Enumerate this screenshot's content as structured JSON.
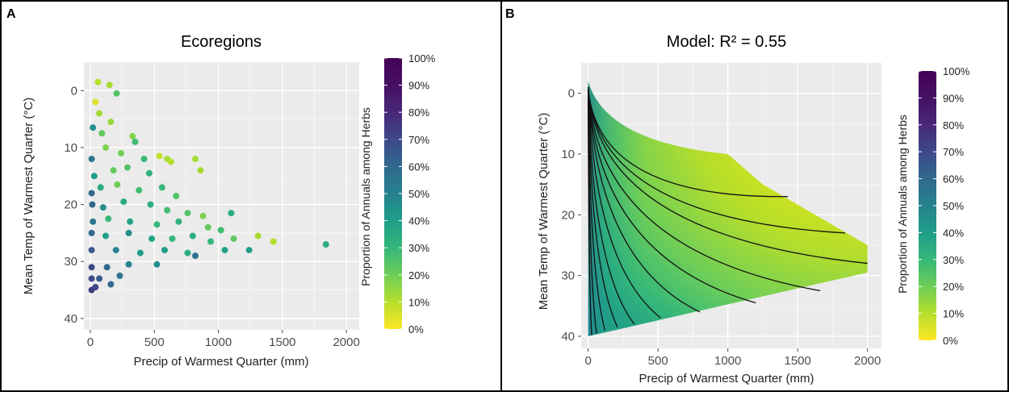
{
  "chart_data": [
    {
      "panel_label": "A",
      "type": "scatter",
      "title": "Ecoregions",
      "xlabel": "Precip of Warmest Quarter (mm)",
      "ylabel": "Mean Temp of Warmest Quarter (°C)",
      "xlim": [
        -50,
        2100
      ],
      "ylim": [
        -5,
        42
      ],
      "y_reversed": true,
      "xticks": [
        "0",
        "500",
        "1000",
        "1500",
        "2000"
      ],
      "yticks": [
        "0",
        "10",
        "20",
        "30",
        "40"
      ],
      "legend_title": "Proportion of Annuals among Herbs",
      "colorbar_ticks": [
        "0%",
        "10%",
        "20%",
        "30%",
        "40%",
        "50%",
        "60%",
        "70%",
        "80%",
        "90%",
        "100%"
      ],
      "colormap": "viridis (reversed: 0% yellow, 100% purple)",
      "grid": true,
      "points": [
        {
          "x": 60,
          "y": -1.5,
          "p": 0.1
        },
        {
          "x": 150,
          "y": -1.0,
          "p": 0.12
        },
        {
          "x": 40,
          "y": 2.0,
          "p": 0.05
        },
        {
          "x": 70,
          "y": 4.0,
          "p": 0.12
        },
        {
          "x": 205,
          "y": 0.5,
          "p": 0.25
        },
        {
          "x": 20,
          "y": 6.5,
          "p": 0.45
        },
        {
          "x": 90,
          "y": 7.5,
          "p": 0.22
        },
        {
          "x": 160,
          "y": 5.5,
          "p": 0.14
        },
        {
          "x": 330,
          "y": 8.0,
          "p": 0.17
        },
        {
          "x": 350,
          "y": 9.0,
          "p": 0.28
        },
        {
          "x": 10,
          "y": 12.0,
          "p": 0.55
        },
        {
          "x": 120,
          "y": 10.0,
          "p": 0.18
        },
        {
          "x": 240,
          "y": 11.0,
          "p": 0.2
        },
        {
          "x": 420,
          "y": 12.0,
          "p": 0.3
        },
        {
          "x": 540,
          "y": 11.5,
          "p": 0.08
        },
        {
          "x": 600,
          "y": 12.0,
          "p": 0.12
        },
        {
          "x": 630,
          "y": 12.5,
          "p": 0.1
        },
        {
          "x": 820,
          "y": 12.0,
          "p": 0.12
        },
        {
          "x": 860,
          "y": 14.0,
          "p": 0.12
        },
        {
          "x": 30,
          "y": 15.0,
          "p": 0.4
        },
        {
          "x": 180,
          "y": 14.0,
          "p": 0.22
        },
        {
          "x": 290,
          "y": 13.5,
          "p": 0.25
        },
        {
          "x": 460,
          "y": 14.5,
          "p": 0.32
        },
        {
          "x": 10,
          "y": 18.0,
          "p": 0.6
        },
        {
          "x": 80,
          "y": 17.0,
          "p": 0.35
        },
        {
          "x": 210,
          "y": 16.5,
          "p": 0.2
        },
        {
          "x": 380,
          "y": 17.5,
          "p": 0.28
        },
        {
          "x": 560,
          "y": 17.0,
          "p": 0.3
        },
        {
          "x": 670,
          "y": 18.5,
          "p": 0.25
        },
        {
          "x": 15,
          "y": 20.0,
          "p": 0.6
        },
        {
          "x": 100,
          "y": 20.5,
          "p": 0.45
        },
        {
          "x": 260,
          "y": 19.5,
          "p": 0.35
        },
        {
          "x": 470,
          "y": 20.0,
          "p": 0.33
        },
        {
          "x": 600,
          "y": 21.0,
          "p": 0.28
        },
        {
          "x": 760,
          "y": 21.5,
          "p": 0.25
        },
        {
          "x": 880,
          "y": 22.0,
          "p": 0.18
        },
        {
          "x": 1100,
          "y": 21.5,
          "p": 0.35
        },
        {
          "x": 20,
          "y": 23.0,
          "p": 0.55
        },
        {
          "x": 140,
          "y": 22.5,
          "p": 0.3
        },
        {
          "x": 310,
          "y": 23.0,
          "p": 0.38
        },
        {
          "x": 520,
          "y": 23.5,
          "p": 0.3
        },
        {
          "x": 690,
          "y": 23.0,
          "p": 0.32
        },
        {
          "x": 920,
          "y": 24.0,
          "p": 0.22
        },
        {
          "x": 1020,
          "y": 24.5,
          "p": 0.28
        },
        {
          "x": 10,
          "y": 25.0,
          "p": 0.6
        },
        {
          "x": 120,
          "y": 25.5,
          "p": 0.4
        },
        {
          "x": 300,
          "y": 25.0,
          "p": 0.45
        },
        {
          "x": 480,
          "y": 26.0,
          "p": 0.38
        },
        {
          "x": 640,
          "y": 26.0,
          "p": 0.3
        },
        {
          "x": 800,
          "y": 25.5,
          "p": 0.35
        },
        {
          "x": 940,
          "y": 26.5,
          "p": 0.3
        },
        {
          "x": 1120,
          "y": 26.0,
          "p": 0.22
        },
        {
          "x": 1310,
          "y": 25.5,
          "p": 0.12
        },
        {
          "x": 1430,
          "y": 26.5,
          "p": 0.1
        },
        {
          "x": 1840,
          "y": 27.0,
          "p": 0.35
        },
        {
          "x": 10,
          "y": 28.0,
          "p": 0.65
        },
        {
          "x": 200,
          "y": 28.0,
          "p": 0.5
        },
        {
          "x": 390,
          "y": 28.5,
          "p": 0.4
        },
        {
          "x": 580,
          "y": 28.0,
          "p": 0.4
        },
        {
          "x": 760,
          "y": 28.5,
          "p": 0.35
        },
        {
          "x": 1050,
          "y": 28.0,
          "p": 0.38
        },
        {
          "x": 1240,
          "y": 28.0,
          "p": 0.4
        },
        {
          "x": 10,
          "y": 31.0,
          "p": 0.7
        },
        {
          "x": 130,
          "y": 31.0,
          "p": 0.6
        },
        {
          "x": 300,
          "y": 30.5,
          "p": 0.5
        },
        {
          "x": 520,
          "y": 30.5,
          "p": 0.45
        },
        {
          "x": 820,
          "y": 29.0,
          "p": 0.55
        },
        {
          "x": 10,
          "y": 33.0,
          "p": 0.7
        },
        {
          "x": 70,
          "y": 33.0,
          "p": 0.65
        },
        {
          "x": 230,
          "y": 32.5,
          "p": 0.55
        },
        {
          "x": 10,
          "y": 35.0,
          "p": 0.75
        },
        {
          "x": 40,
          "y": 34.5,
          "p": 0.7
        },
        {
          "x": 160,
          "y": 34.0,
          "p": 0.6
        }
      ]
    },
    {
      "panel_label": "B",
      "type": "heatmap",
      "title": "Model: R² = 0.55",
      "xlabel": "Precip of Warmest Quarter (mm)",
      "ylabel": "Mean Temp of Warmest Quarter (°C)",
      "xlim": [
        -50,
        2100
      ],
      "ylim": [
        -5,
        42
      ],
      "y_reversed": true,
      "xticks": [
        "0",
        "500",
        "1000",
        "1500",
        "2000"
      ],
      "yticks": [
        "0",
        "10",
        "20",
        "30",
        "40"
      ],
      "legend_title": "Proportion of Annuals among Herbs",
      "colorbar_ticks": [
        "0%",
        "10%",
        "20%",
        "30%",
        "40%",
        "50%",
        "60%",
        "70%",
        "80%",
        "90%",
        "100%"
      ],
      "colormap": "viridis (reversed: 0% yellow, 100% purple)",
      "grid": true,
      "domain_outline": [
        [
          0,
          -2
        ],
        [
          1000,
          10
        ],
        [
          1250,
          15
        ],
        [
          2000,
          25
        ],
        [
          2000,
          29.5
        ],
        [
          0,
          40
        ]
      ],
      "contours": 12
    }
  ]
}
